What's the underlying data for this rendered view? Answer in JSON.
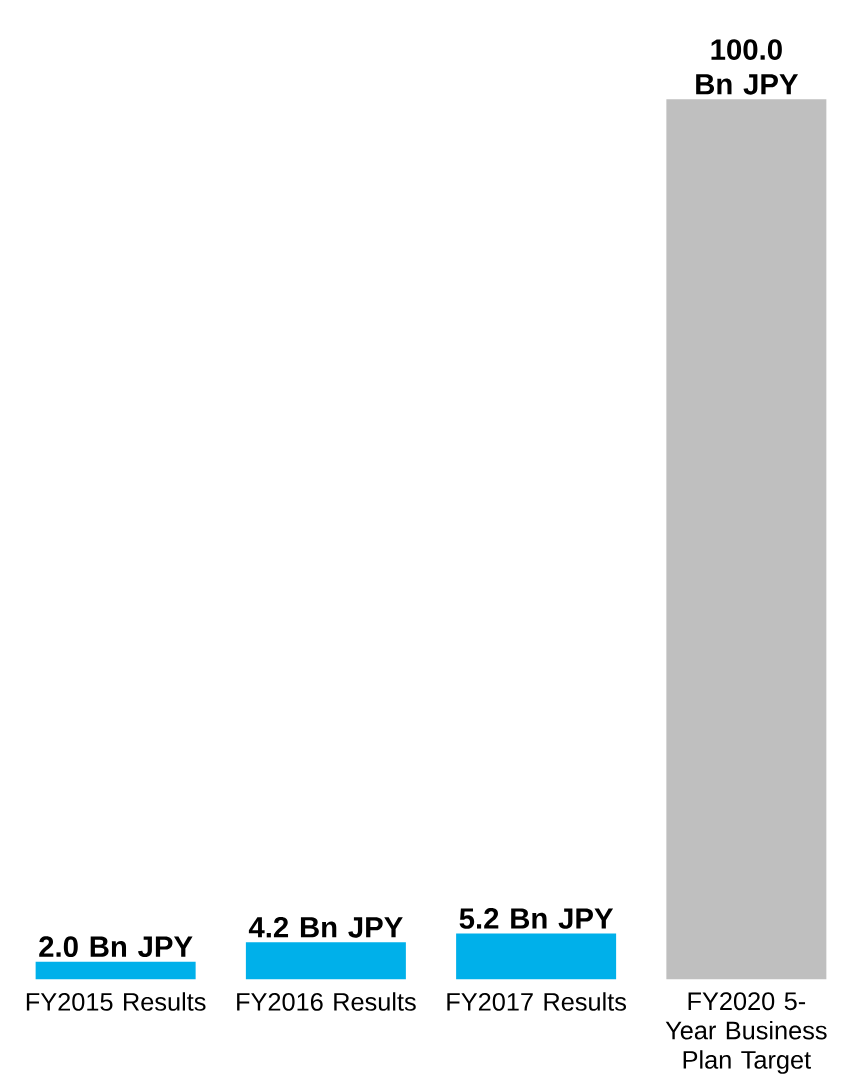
{
  "chart_data": {
    "type": "bar",
    "categories": [
      "FY2015 Results",
      "FY2016 Results",
      "FY2017 Results",
      "FY2020 5-Year Business Plan Target"
    ],
    "values": [
      2.0,
      4.2,
      5.2,
      100.0
    ],
    "colors": [
      "#00b0ea",
      "#00b0ea",
      "#00b0ea",
      "#bfbfbf"
    ],
    "value_labels": [
      "2.0 Bn JPY",
      "4.2 Bn JPY",
      "5.2 Bn JPY",
      "100.0 Bn JPY"
    ]
  }
}
